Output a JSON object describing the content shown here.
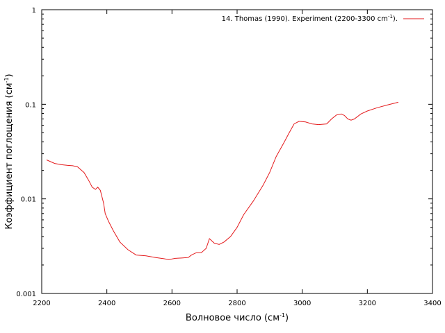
{
  "chart_data": {
    "type": "line",
    "scale_y": "log",
    "grid": false,
    "legend_position": "top-right",
    "xlabel": "Волновое число (см",
    "xlabel_sup": "-1",
    "xlabel_end": ")",
    "ylabel": "Коэффициент поглощения (см",
    "ylabel_sup": "-1",
    "ylabel_end": ")",
    "xlim": [
      2200,
      3400
    ],
    "ylim": [
      0.001,
      1
    ],
    "x_ticks": [
      "2200",
      "2400",
      "2600",
      "2800",
      "3000",
      "3200",
      "3400"
    ],
    "y_ticks": [
      "0.001",
      "0.01",
      "0.1",
      "1"
    ],
    "series": [
      {
        "name": "14. Thomas (1990). Experiment (2200-3300 cm",
        "name_sup": "-1",
        "name_end": ").",
        "color": "#e41a1c",
        "x": [
          2215,
          2240,
          2260,
          2280,
          2295,
          2310,
          2330,
          2345,
          2355,
          2365,
          2372,
          2380,
          2390,
          2395,
          2405,
          2420,
          2440,
          2465,
          2490,
          2520,
          2550,
          2575,
          2590,
          2610,
          2630,
          2650,
          2660,
          2675,
          2690,
          2705,
          2715,
          2730,
          2745,
          2760,
          2780,
          2800,
          2820,
          2850,
          2880,
          2900,
          2920,
          2945,
          2960,
          2975,
          2990,
          3010,
          3030,
          3050,
          3075,
          3090,
          3105,
          3120,
          3130,
          3140,
          3150,
          3160,
          3180,
          3200,
          3230,
          3260,
          3295
        ],
        "y": [
          0.0258,
          0.0237,
          0.023,
          0.0226,
          0.0224,
          0.0218,
          0.019,
          0.0155,
          0.0133,
          0.0126,
          0.0133,
          0.0123,
          0.009,
          0.007,
          0.0058,
          0.0046,
          0.0035,
          0.0029,
          0.00255,
          0.0025,
          0.0024,
          0.00233,
          0.00228,
          0.00235,
          0.00237,
          0.0024,
          0.00255,
          0.0027,
          0.0027,
          0.003,
          0.0038,
          0.0034,
          0.0033,
          0.0035,
          0.004,
          0.005,
          0.0068,
          0.0095,
          0.014,
          0.019,
          0.028,
          0.04,
          0.05,
          0.062,
          0.066,
          0.065,
          0.062,
          0.061,
          0.062,
          0.07,
          0.077,
          0.079,
          0.076,
          0.07,
          0.068,
          0.07,
          0.079,
          0.085,
          0.092,
          0.098,
          0.105
        ]
      }
    ]
  }
}
